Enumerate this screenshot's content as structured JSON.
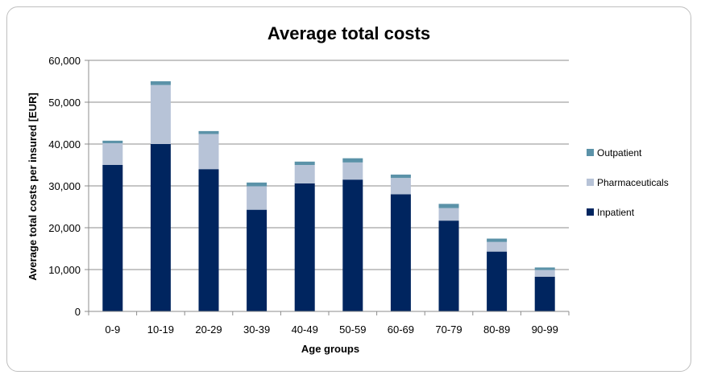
{
  "chart_data": {
    "type": "bar",
    "stacked": true,
    "title": "Average total  costs",
    "xlabel": "Age groups",
    "ylabel": "Average total costs per insured [EUR]",
    "ylim": [
      0,
      60000
    ],
    "yticks": [
      "0",
      "10,000",
      "20,000",
      "30,000",
      "40,000",
      "50,000",
      "60,000"
    ],
    "ytick_values": [
      0,
      10000,
      20000,
      30000,
      40000,
      50000,
      60000
    ],
    "grid": true,
    "legend_position": "right",
    "categories": [
      "0-9",
      "10-19",
      "20-29",
      "30-39",
      "40-49",
      "50-59",
      "60-69",
      "70-79",
      "80-89",
      "90-99"
    ],
    "series": [
      {
        "name": "Inpatient",
        "color": "#00255f",
        "values": [
          35000,
          40000,
          34000,
          24300,
          30600,
          31500,
          28000,
          21700,
          14300,
          8300
        ]
      },
      {
        "name": "Pharmaceuticals",
        "color": "#b7c3d7",
        "values": [
          5200,
          14100,
          8400,
          5600,
          4400,
          4100,
          3900,
          3000,
          2300,
          1600
        ]
      },
      {
        "name": "Outpatient",
        "color": "#5b92a8",
        "values": [
          600,
          900,
          700,
          900,
          800,
          1000,
          800,
          1000,
          800,
          600
        ]
      }
    ]
  }
}
